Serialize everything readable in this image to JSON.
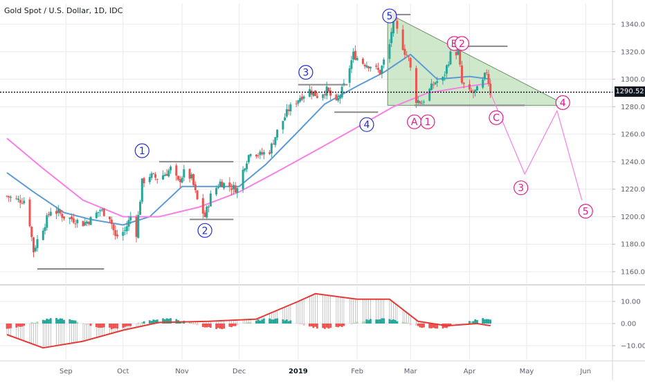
{
  "title": "Gold Spot / U.S. Dollar, 1D, IDC",
  "last_price_label": "1290.52",
  "colors": {
    "up": "#26a69a",
    "down": "#ef5350",
    "ma_fast": "#5b9bd5",
    "ma_slow": "#f77fe6",
    "wave_blue": "#1f2bd0",
    "wave_pink": "#e8198b",
    "triangle_fill": "#a8d5a2",
    "macd_line": "#e53935",
    "grid": "#e6e9ee",
    "axis_text": "#5d606b"
  },
  "chart_data": [
    {
      "type": "candlestick",
      "title": "Gold Spot / U.S. Dollar, 1D, IDC",
      "x_ticks": [
        "Sep",
        "Oct",
        "Nov",
        "Dec",
        "2019",
        "Feb",
        "Mar",
        "Apr",
        "May",
        "Jun"
      ],
      "y_ticks": [
        "1340.00",
        "1320.00",
        "1300.00",
        "1280.00",
        "1260.00",
        "1240.00",
        "1220.00",
        "1200.00",
        "1180.00",
        "1160.00"
      ],
      "ylim": [
        1150,
        1352
      ],
      "x_range": [
        "2018-08-01",
        "2019-06-10"
      ],
      "last_price": 1290.52,
      "closes": [
        [
          "2018-08-01",
          1215
        ],
        [
          "2018-08-06",
          1212
        ],
        [
          "2018-08-10",
          1212
        ],
        [
          "2018-08-13",
          1195
        ],
        [
          "2018-08-15",
          1175
        ],
        [
          "2018-08-17",
          1183
        ],
        [
          "2018-08-21",
          1195
        ],
        [
          "2018-08-24",
          1205
        ],
        [
          "2018-08-28",
          1203
        ],
        [
          "2018-08-31",
          1200
        ],
        [
          "2018-09-05",
          1198
        ],
        [
          "2018-09-10",
          1195
        ],
        [
          "2018-09-14",
          1198
        ],
        [
          "2018-09-19",
          1205
        ],
        [
          "2018-09-24",
          1200
        ],
        [
          "2018-09-27",
          1185
        ],
        [
          "2018-10-02",
          1190
        ],
        [
          "2018-10-05",
          1200
        ],
        [
          "2018-10-08",
          1188
        ],
        [
          "2018-10-11",
          1225
        ],
        [
          "2018-10-15",
          1230
        ],
        [
          "2018-10-19",
          1228
        ],
        [
          "2018-10-24",
          1232
        ],
        [
          "2018-10-26",
          1235
        ],
        [
          "2018-10-30",
          1225
        ],
        [
          "2018-11-02",
          1232
        ],
        [
          "2018-11-06",
          1228
        ],
        [
          "2018-11-09",
          1212
        ],
        [
          "2018-11-13",
          1200
        ],
        [
          "2018-11-16",
          1215
        ],
        [
          "2018-11-21",
          1225
        ],
        [
          "2018-11-26",
          1222
        ],
        [
          "2018-11-30",
          1220
        ],
        [
          "2018-12-04",
          1238
        ],
        [
          "2018-12-07",
          1248
        ],
        [
          "2018-12-12",
          1245
        ],
        [
          "2018-12-17",
          1248
        ],
        [
          "2018-12-21",
          1262
        ],
        [
          "2018-12-27",
          1278
        ],
        [
          "2019-01-02",
          1287
        ],
        [
          "2019-01-07",
          1292
        ],
        [
          "2019-01-11",
          1288
        ],
        [
          "2019-01-16",
          1292
        ],
        [
          "2019-01-21",
          1282
        ],
        [
          "2019-01-25",
          1295
        ],
        [
          "2019-01-30",
          1318
        ],
        [
          "2019-02-04",
          1312
        ],
        [
          "2019-02-08",
          1310
        ],
        [
          "2019-02-13",
          1305
        ],
        [
          "2019-02-18",
          1325
        ],
        [
          "2019-02-20",
          1345
        ],
        [
          "2019-02-22",
          1335
        ],
        [
          "2019-02-26",
          1320
        ],
        [
          "2019-02-28",
          1315
        ],
        [
          "2019-03-04",
          1285
        ],
        [
          "2019-03-07",
          1283
        ],
        [
          "2019-03-11",
          1292
        ],
        [
          "2019-03-14",
          1298
        ],
        [
          "2019-03-18",
          1300
        ],
        [
          "2019-03-22",
          1318
        ],
        [
          "2019-03-26",
          1320
        ],
        [
          "2019-03-28",
          1297
        ],
        [
          "2019-04-01",
          1290
        ],
        [
          "2019-04-03",
          1290
        ],
        [
          "2019-04-05",
          1292
        ],
        [
          "2019-04-08",
          1298
        ],
        [
          "2019-04-10",
          1306
        ],
        [
          "2019-04-12",
          1290
        ]
      ],
      "moving_averages": [
        {
          "key": "fast",
          "points": [
            [
              "2018-08-01",
              1232
            ],
            [
              "2018-08-15",
              1218
            ],
            [
              "2018-08-31",
              1203
            ],
            [
              "2018-09-14",
              1198
            ],
            [
              "2018-10-01",
              1194
            ],
            [
              "2018-10-15",
              1200
            ],
            [
              "2018-11-01",
              1222
            ],
            [
              "2018-11-15",
              1222
            ],
            [
              "2018-12-01",
              1222
            ],
            [
              "2018-12-15",
              1238
            ],
            [
              "2019-01-01",
              1262
            ],
            [
              "2019-01-15",
              1282
            ],
            [
              "2019-02-01",
              1295
            ],
            [
              "2019-02-15",
              1305
            ],
            [
              "2019-03-01",
              1318
            ],
            [
              "2019-03-15",
              1300
            ],
            [
              "2019-04-01",
              1302
            ],
            [
              "2019-04-12",
              1300
            ]
          ]
        },
        {
          "key": "slow",
          "points": [
            [
              "2018-08-01",
              1257
            ],
            [
              "2018-08-20",
              1235
            ],
            [
              "2018-09-10",
              1212
            ],
            [
              "2018-10-01",
              1200
            ],
            [
              "2018-10-20",
              1200
            ],
            [
              "2018-11-10",
              1207
            ],
            [
              "2018-12-01",
              1218
            ],
            [
              "2018-12-20",
              1232
            ],
            [
              "2019-01-10",
              1248
            ],
            [
              "2019-02-01",
              1265
            ],
            [
              "2019-02-20",
              1280
            ],
            [
              "2019-03-10",
              1290
            ],
            [
              "2019-04-01",
              1295
            ],
            [
              "2019-04-12",
              1297
            ]
          ]
        }
      ],
      "annotations": {
        "blue_waves": [
          {
            "label": "1",
            "x": "2018-10-11",
            "y": 1248
          },
          {
            "label": "2",
            "x": "2018-11-13",
            "y": 1190
          },
          {
            "label": "3",
            "x": "2019-01-05",
            "y": 1305
          },
          {
            "label": "4",
            "x": "2019-02-06",
            "y": 1267
          },
          {
            "label": "5",
            "x": "2019-02-18",
            "y": 1346
          }
        ],
        "pink_waves": [
          {
            "label": "A",
            "x": "2019-03-03",
            "y": 1269
          },
          {
            "label": "1",
            "x": "2019-03-10",
            "y": 1269
          },
          {
            "label": "B",
            "x": "2019-03-24",
            "y": 1326
          },
          {
            "label": "2",
            "x": "2019-03-28",
            "y": 1326
          },
          {
            "label": "C",
            "x": "2019-04-15",
            "y": 1272
          },
          {
            "label": "4",
            "x": "2019-05-20",
            "y": 1283
          },
          {
            "label": "3",
            "x": "2019-04-28",
            "y": 1221
          },
          {
            "label": "5",
            "x": "2019-06-01",
            "y": 1204
          }
        ],
        "projection_path": [
          [
            "2019-04-12",
            1290
          ],
          [
            "2019-04-30",
            1231
          ],
          [
            "2019-05-17",
            1277
          ],
          [
            "2019-05-30",
            1212
          ]
        ],
        "triangle": [
          [
            "2019-02-17",
            1348
          ],
          [
            "2019-05-22",
            1281
          ],
          [
            "2019-02-17",
            1281
          ]
        ]
      }
    },
    {
      "type": "bar",
      "title": "",
      "y_ticks": [
        "10.00",
        "0.00",
        "−10.00"
      ],
      "ylim": [
        -16,
        16
      ],
      "macd_line": [
        [
          "2018-08-01",
          -5
        ],
        [
          "2018-08-20",
          -11
        ],
        [
          "2018-09-10",
          -8
        ],
        [
          "2018-10-01",
          -3
        ],
        [
          "2018-10-20",
          0.5
        ],
        [
          "2018-11-15",
          1
        ],
        [
          "2018-12-10",
          2
        ],
        [
          "2019-01-01",
          10
        ],
        [
          "2019-01-10",
          13.5
        ],
        [
          "2019-02-01",
          11
        ],
        [
          "2019-02-18",
          11
        ],
        [
          "2019-03-05",
          1
        ],
        [
          "2019-03-20",
          -1
        ],
        [
          "2019-04-05",
          0
        ],
        [
          "2019-04-12",
          -1
        ]
      ]
    }
  ]
}
